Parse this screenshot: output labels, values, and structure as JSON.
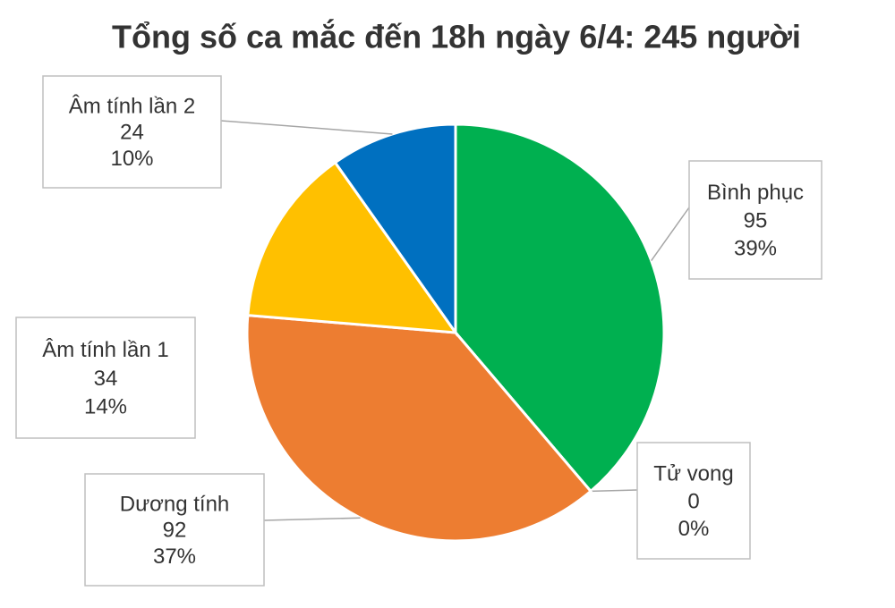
{
  "chart_data": {
    "type": "pie",
    "title": "Tổng số ca mắc đến 18h ngày 6/4: 245 người",
    "categories": [
      "Bình phục",
      "Tử vong",
      "Dương tính",
      "Âm tính lần 1",
      "Âm tính lần 2"
    ],
    "values": [
      95,
      0,
      92,
      34,
      24
    ],
    "percents": [
      {
        "value": 39,
        "label": "39%"
      },
      {
        "value": 0,
        "label": "0%"
      },
      {
        "value": 37,
        "label": "37%"
      },
      {
        "value": 14,
        "label": "14%"
      },
      {
        "value": 10,
        "label": "10%"
      }
    ],
    "colors": [
      "#00b050",
      "#a5a5a5",
      "#ed7d31",
      "#ffc000",
      "#0070c0"
    ]
  }
}
